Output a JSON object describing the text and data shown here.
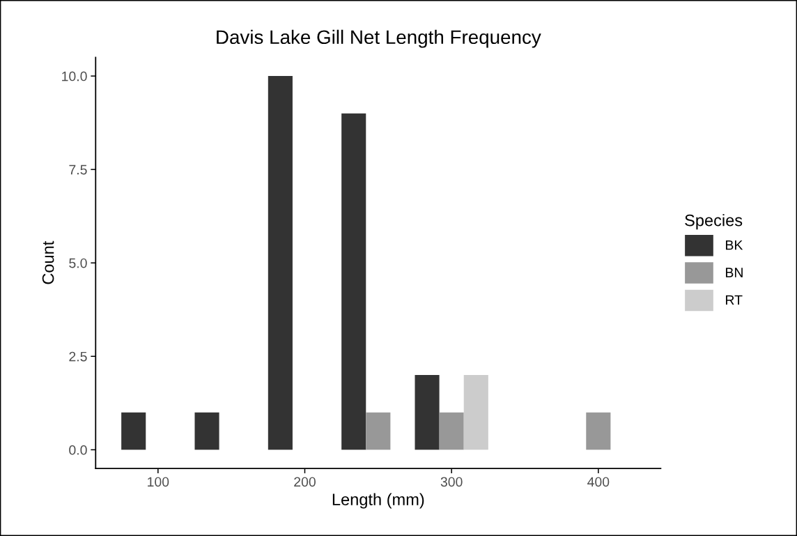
{
  "chart_data": {
    "type": "histogram",
    "title": "Davis Lake Gill Net Length Frequency",
    "xlabel": "Length (mm)",
    "ylabel": "Count",
    "legend_title": "Species",
    "bins": [
      75,
      125,
      175,
      225,
      275,
      325,
      375,
      425
    ],
    "series": [
      {
        "name": "BK",
        "color": "#333333",
        "values": [
          1,
          1,
          10,
          9,
          2,
          0,
          0
        ]
      },
      {
        "name": "BN",
        "color": "#989898",
        "values": [
          0,
          0,
          0,
          1,
          1,
          0,
          1
        ]
      },
      {
        "name": "RT",
        "color": "#cccccc",
        "values": [
          0,
          0,
          0,
          0,
          2,
          0,
          0
        ]
      }
    ],
    "xlim": [
      57.5,
      442.5
    ],
    "xticks": [
      100,
      200,
      300,
      400
    ],
    "ylim": [
      -0.5,
      10.5
    ],
    "yticks": [
      {
        "value": 0,
        "label": "0.0"
      },
      {
        "value": 2.5,
        "label": "2.5"
      },
      {
        "value": 5,
        "label": "5.0"
      },
      {
        "value": 7.5,
        "label": "7.5"
      },
      {
        "value": 10,
        "label": "10.0"
      }
    ],
    "grid": false,
    "legend": "right"
  }
}
